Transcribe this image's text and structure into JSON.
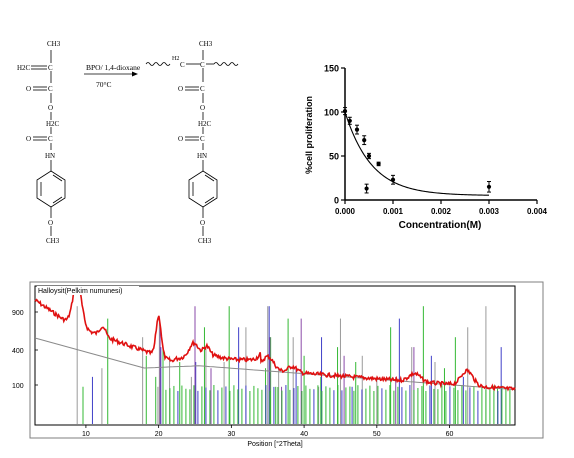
{
  "scheme": {
    "reactant_labels": [
      "CH3",
      "H2C",
      "C",
      "C",
      "O",
      "O",
      "H2C",
      "C",
      "O",
      "HN",
      "O",
      "CH3"
    ],
    "product_labels": [
      "CH3",
      "H2",
      "C",
      "C",
      "C",
      "O",
      "O",
      "H2C",
      "C",
      "O",
      "HN",
      "O",
      "CH3"
    ],
    "conditions_top": "BPO/ 1,4-dioxane",
    "conditions_bottom": "70°C"
  },
  "chart_data": [
    {
      "type": "scatter",
      "title": "",
      "xlabel": "Concentration(M)",
      "ylabel": "%cell proliferation",
      "xlim": [
        0,
        0.004
      ],
      "ylim": [
        0,
        150
      ],
      "x_ticks": [
        "0.000",
        "0.001",
        "0.002",
        "0.003",
        "0.004"
      ],
      "y_ticks": [
        "0",
        "50",
        "100",
        "150"
      ],
      "points": [
        {
          "x": 0.0,
          "y": 101,
          "err": 4
        },
        {
          "x": 0.0001,
          "y": 90,
          "err": 4
        },
        {
          "x": 0.00025,
          "y": 80,
          "err": 5
        },
        {
          "x": 0.0004,
          "y": 68,
          "err": 5
        },
        {
          "x": 0.00045,
          "y": 13,
          "err": 5
        },
        {
          "x": 0.0005,
          "y": 50,
          "err": 3
        },
        {
          "x": 0.0007,
          "y": 41,
          "err": 2
        },
        {
          "x": 0.001,
          "y": 23,
          "err": 5
        },
        {
          "x": 0.003,
          "y": 15,
          "err": 6
        }
      ],
      "fit": {
        "model": "one-phase decay",
        "top": 100,
        "plateau": 5,
        "k": 1800
      }
    },
    {
      "type": "line",
      "title": "Halloysit(Pelkim numunesi)",
      "xlabel": "Position [°2Theta]",
      "ylabel": "",
      "xlim": [
        3,
        69
      ],
      "y_ticks": [
        "100",
        "400",
        "900"
      ],
      "x_ticks": [
        "10",
        "20",
        "30",
        "40",
        "50",
        "60"
      ],
      "peaks_2theta": [
        8.8,
        12.3,
        20.0,
        24.8,
        26.6,
        35.0,
        38.4,
        55.2,
        62.4
      ],
      "reference_lines": {
        "grey": [
          8.8,
          12.2,
          17.8,
          19.9,
          20.1,
          21.5,
          24.5,
          26.5,
          29.0,
          32.0,
          35.0,
          36.5,
          38.5,
          42.0,
          45.0,
          48.0,
          50.0,
          54.8,
          58.0,
          62.5,
          65.0
        ],
        "green": [
          9.6,
          13.0,
          18.3,
          19.6,
          20.6,
          22.9,
          26.3,
          29.7,
          34.7,
          35.4,
          36.1,
          37.8,
          40.0,
          42.3,
          44.6,
          47.1,
          51.9,
          56.4,
          59.3,
          60.8,
          66.6
        ],
        "blue": [
          10.9,
          20.3,
          25.1,
          31.0,
          35.2,
          38.9,
          42.4,
          46.6,
          53.1,
          57.5,
          61.9,
          67.1
        ],
        "purple": [
          20.2,
          25.0,
          27.2,
          35.3,
          36.9,
          39.6,
          45.5,
          52.6,
          55.1
        ]
      }
    }
  ]
}
